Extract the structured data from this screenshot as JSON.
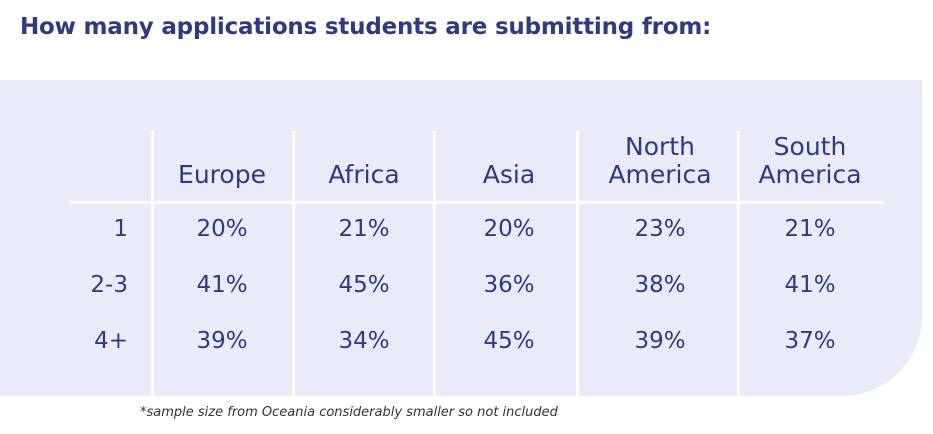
{
  "title": "How many applications students are submitting from:",
  "footnote": "*sample size from Oceania considerably smaller so not included",
  "colors": {
    "title": "#2e3a83",
    "text": "#2e3a83",
    "panel": "#e9ebf8",
    "gridlines": "#ffffff"
  },
  "chart_data": {
    "type": "table",
    "title": "How many applications students are submitting from:",
    "columns": [
      "Europe",
      "Africa",
      "Asia",
      "North America",
      "South America"
    ],
    "column_lines": [
      [
        "Europe"
      ],
      [
        "Africa"
      ],
      [
        "Asia"
      ],
      [
        "North",
        "America"
      ],
      [
        "South",
        "America"
      ]
    ],
    "rows": [
      {
        "label": "1",
        "values": [
          "20%",
          "21%",
          "20%",
          "23%",
          "21%"
        ]
      },
      {
        "label": "2-3",
        "values": [
          "41%",
          "45%",
          "36%",
          "38%",
          "41%"
        ]
      },
      {
        "label": "4+",
        "values": [
          "39%",
          "34%",
          "45%",
          "39%",
          "37%"
        ]
      }
    ],
    "note": "*sample size from Oceania considerably smaller so not included"
  }
}
